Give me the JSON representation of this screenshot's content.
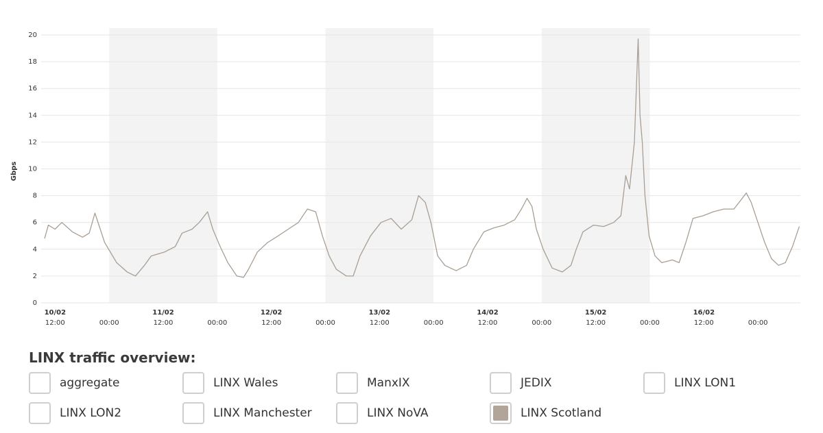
{
  "chart_data": {
    "type": "line",
    "ylabel": "Gbps",
    "ylim": [
      0,
      20
    ],
    "yticks": [
      0,
      2,
      4,
      6,
      8,
      10,
      12,
      14,
      16,
      18,
      20
    ],
    "grid": true,
    "xlim": [
      "10/02 09:40",
      "17/02 09:25"
    ],
    "xticks": [
      {
        "value": "10/02 12:00",
        "label": "12:00"
      },
      {
        "value": "11/02 00:00",
        "label": "00:00"
      },
      {
        "value": "11/02 12:00",
        "label": "12:00"
      },
      {
        "value": "12/02 00:00",
        "label": "00:00"
      },
      {
        "value": "12/02 12:00",
        "label": "12:00"
      },
      {
        "value": "13/02 00:00",
        "label": "00:00"
      },
      {
        "value": "13/02 12:00",
        "label": "12:00"
      },
      {
        "value": "14/02 00:00",
        "label": "00:00"
      },
      {
        "value": "14/02 12:00",
        "label": "12:00"
      },
      {
        "value": "15/02 00:00",
        "label": "00:00"
      },
      {
        "value": "15/02 12:00",
        "label": "12:00"
      },
      {
        "value": "16/02 00:00",
        "label": "00:00"
      },
      {
        "value": "16/02 12:00",
        "label": "12:00"
      },
      {
        "value": "17/02 00:00",
        "label": "00:00"
      }
    ],
    "xdate_ticks": [
      {
        "value": "10/02 12:00",
        "label": "10/02"
      },
      {
        "value": "11/02 12:00",
        "label": "11/02"
      },
      {
        "value": "12/02 12:00",
        "label": "12/02"
      },
      {
        "value": "13/02 12:00",
        "label": "13/02"
      },
      {
        "value": "14/02 12:00",
        "label": "14/02"
      },
      {
        "value": "15/02 12:00",
        "label": "15/02"
      },
      {
        "value": "16/02 12:00",
        "label": "16/02"
      }
    ],
    "shaded": [
      [
        "11/02 00:00",
        "12/02 00:00"
      ],
      [
        "13/02 00:00",
        "14/02 00:00"
      ],
      [
        "15/02 00:00",
        "16/02 00:00"
      ]
    ],
    "shade_color": "#f3f3f3",
    "x": [
      "10/02 09:40",
      "10/02 10:30",
      "10/02 12:00",
      "10/02 13:30",
      "10/02 15:50",
      "10/02 18:05",
      "10/02 19:35",
      "10/02 20:50",
      "10/02 23:00",
      "11/02 01:40",
      "11/02 04:00",
      "11/02 05:50",
      "11/02 07:50",
      "11/02 09:20",
      "11/02 12:20",
      "11/02 14:40",
      "11/02 16:10",
      "11/02 18:25",
      "11/02 20:00",
      "11/02 21:50",
      "11/02 23:00",
      "12/02 00:30",
      "12/02 02:20",
      "12/02 04:20",
      "12/02 05:50",
      "12/02 06:55",
      "12/02 08:55",
      "12/02 11:10",
      "12/02 13:30",
      "12/02 15:45",
      "12/02 18:00",
      "12/02 20:00",
      "12/02 21:50",
      "12/02 23:20",
      "13/02 00:50",
      "13/02 02:25",
      "13/02 04:40",
      "13/02 06:10",
      "13/02 07:40",
      "13/02 10:00",
      "13/02 12:20",
      "13/02 14:35",
      "13/02 16:50",
      "13/02 19:10",
      "13/02 20:40",
      "13/02 22:10",
      "13/02 23:25",
      "14/02 00:55",
      "14/02 02:30",
      "14/02 05:00",
      "14/02 07:20",
      "14/02 08:50",
      "14/02 11:10",
      "14/02 13:25",
      "14/02 15:40",
      "14/02 18:00",
      "14/02 19:30",
      "14/02 20:45",
      "14/02 21:50",
      "14/02 22:50",
      "15/02 00:20",
      "15/02 02:20",
      "15/02 04:35",
      "15/02 06:30",
      "15/02 07:40",
      "15/02 09:10",
      "15/02 11:30",
      "15/02 13:45",
      "15/02 16:00",
      "15/02 17:35",
      "15/02 18:40",
      "15/02 19:30",
      "15/02 20:35",
      "15/02 21:25",
      "15/02 21:50",
      "15/02 22:20",
      "15/02 22:55",
      "15/02 23:50",
      "16/02 01:10",
      "16/02 02:40",
      "16/02 05:00",
      "16/02 06:30",
      "16/02 08:00",
      "16/02 09:35",
      "16/02 11:50",
      "16/02 14:05",
      "16/02 16:25",
      "16/02 18:40",
      "16/02 21:25",
      "16/02 22:30",
      "17/02 00:00",
      "17/02 01:30",
      "17/02 03:00",
      "17/02 04:35",
      "17/02 06:05",
      "17/02 07:40",
      "17/02 09:10"
    ],
    "series": [
      {
        "color": "#a99e93",
        "values": [
          4.8,
          5.8,
          5.5,
          6.0,
          5.3,
          4.9,
          5.2,
          6.7,
          4.5,
          3.0,
          2.3,
          2.0,
          2.8,
          3.5,
          3.8,
          4.2,
          5.2,
          5.5,
          6.0,
          6.8,
          5.5,
          4.3,
          3.0,
          2.0,
          1.9,
          2.5,
          3.8,
          4.5,
          5.0,
          5.5,
          6.0,
          7.0,
          6.8,
          5.0,
          3.5,
          2.5,
          2.0,
          2.0,
          3.5,
          5.0,
          6.0,
          6.3,
          5.5,
          6.2,
          8.0,
          7.5,
          6.0,
          3.5,
          2.8,
          2.4,
          2.8,
          4.0,
          5.3,
          5.6,
          5.8,
          6.2,
          7.0,
          7.8,
          7.2,
          5.5,
          4.0,
          2.6,
          2.3,
          2.8,
          4.0,
          5.3,
          5.8,
          5.7,
          6.0,
          6.5,
          9.5,
          8.5,
          12.0,
          19.7,
          14.0,
          12.0,
          8.0,
          5.0,
          3.5,
          3.0,
          3.2,
          3.0,
          4.5,
          6.3,
          6.5,
          6.8,
          7.0,
          7.0,
          8.2,
          7.5,
          6.0,
          4.5,
          3.3,
          2.8,
          3.0,
          4.2,
          5.7
        ]
      }
    ]
  },
  "selector": {
    "title": "LINX traffic overview:",
    "items": [
      {
        "label": "aggregate",
        "checked": false
      },
      {
        "label": "LINX Wales",
        "checked": false
      },
      {
        "label": "ManxIX",
        "checked": false
      },
      {
        "label": "JEDIX",
        "checked": false
      },
      {
        "label": "LINX LON1",
        "checked": false
      },
      {
        "label": "LINX LON2",
        "checked": false
      },
      {
        "label": "LINX Manchester",
        "checked": false
      },
      {
        "label": "LINX NoVA",
        "checked": false
      },
      {
        "label": "LINX Scotland",
        "checked": true,
        "color": "#b0a598"
      }
    ]
  }
}
